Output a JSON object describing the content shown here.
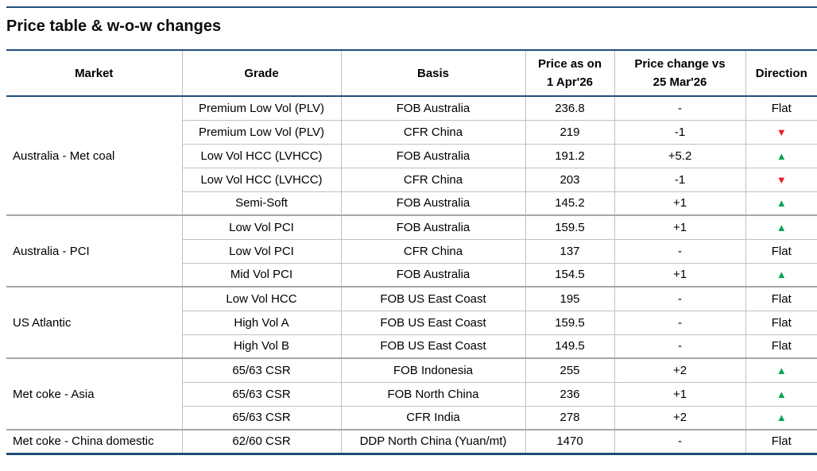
{
  "title": "Price table & w-o-w changes",
  "colors": {
    "accent_navy": "#1F4E79",
    "up_green": "#00A651",
    "down_red": "#EE1C25",
    "grid_gray": "#C0C0C0",
    "group_border_gray": "#A6A6A6"
  },
  "table": {
    "headers": {
      "market": "Market",
      "grade": "Grade",
      "basis": "Basis",
      "price_line1": "Price as on",
      "price_line2": "1 Apr'26",
      "change_line1": "Price change vs",
      "change_line2": "25 Mar'26",
      "direction": "Direction"
    },
    "groups": [
      {
        "market": "Australia - Met coal",
        "rows": [
          {
            "grade": "Premium Low Vol (PLV)",
            "basis": "FOB Australia",
            "price": "236.8",
            "change": "-",
            "direction_symbol": "Flat",
            "direction_class": "dir-flat"
          },
          {
            "grade": "Premium Low Vol (PLV)",
            "basis": "CFR China",
            "price": "219",
            "change": "-1",
            "direction_symbol": "▼",
            "direction_class": "dir-down"
          },
          {
            "grade": "Low Vol HCC (LVHCC)",
            "basis": "FOB Australia",
            "price": "191.2",
            "change": "+5.2",
            "direction_symbol": "▲",
            "direction_class": "dir-up"
          },
          {
            "grade": "Low Vol HCC (LVHCC)",
            "basis": "CFR China",
            "price": "203",
            "change": "-1",
            "direction_symbol": "▼",
            "direction_class": "dir-down"
          },
          {
            "grade": "Semi-Soft",
            "basis": "FOB Australia",
            "price": "145.2",
            "change": "+1",
            "direction_symbol": "▲",
            "direction_class": "dir-up"
          }
        ]
      },
      {
        "market": "Australia - PCI",
        "rows": [
          {
            "grade": "Low Vol PCI",
            "basis": "FOB Australia",
            "price": "159.5",
            "change": "+1",
            "direction_symbol": "▲",
            "direction_class": "dir-up"
          },
          {
            "grade": "Low Vol PCI",
            "basis": "CFR China",
            "price": "137",
            "change": "-",
            "direction_symbol": "Flat",
            "direction_class": "dir-flat"
          },
          {
            "grade": "Mid Vol PCI",
            "basis": "FOB Australia",
            "price": "154.5",
            "change": "+1",
            "direction_symbol": "▲",
            "direction_class": "dir-up"
          }
        ]
      },
      {
        "market": "US Atlantic",
        "rows": [
          {
            "grade": "Low Vol HCC",
            "basis": "FOB US East Coast",
            "price": "195",
            "change": "-",
            "direction_symbol": "Flat",
            "direction_class": "dir-flat"
          },
          {
            "grade": "High Vol A",
            "basis": "FOB US East Coast",
            "price": "159.5",
            "change": "-",
            "direction_symbol": "Flat",
            "direction_class": "dir-flat"
          },
          {
            "grade": "High Vol B",
            "basis": "FOB US East Coast",
            "price": "149.5",
            "change": "-",
            "direction_symbol": "Flat",
            "direction_class": "dir-flat"
          }
        ]
      },
      {
        "market": "Met coke - Asia",
        "rows": [
          {
            "grade": "65/63 CSR",
            "basis": "FOB Indonesia",
            "price": "255",
            "change": "+2",
            "direction_symbol": "▲",
            "direction_class": "dir-up"
          },
          {
            "grade": "65/63 CSR",
            "basis": "FOB North China",
            "price": "236",
            "change": "+1",
            "direction_symbol": "▲",
            "direction_class": "dir-up"
          },
          {
            "grade": "65/63 CSR",
            "basis": "CFR India",
            "price": "278",
            "change": "+2",
            "direction_symbol": "▲",
            "direction_class": "dir-up"
          }
        ]
      },
      {
        "market": "Met coke - China domestic",
        "rows": [
          {
            "grade": "62/60 CSR",
            "basis": "DDP North China (Yuan/mt)",
            "price": "1470",
            "change": "-",
            "direction_symbol": "Flat",
            "direction_class": "dir-flat"
          }
        ]
      }
    ]
  }
}
